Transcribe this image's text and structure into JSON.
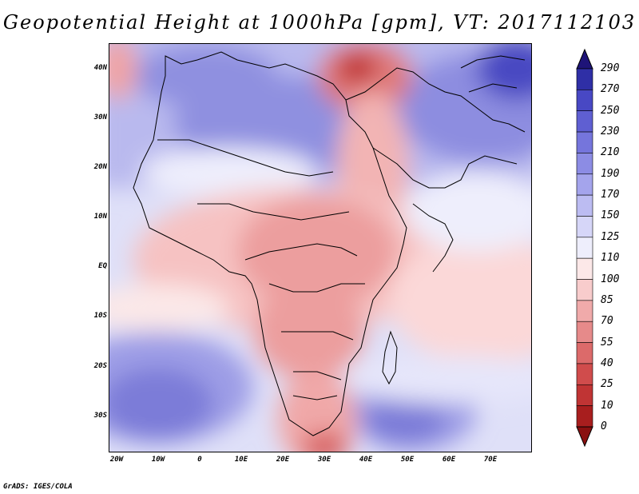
{
  "title": "Geopotential Height at 1000hPa [gpm], VT: 2017112103",
  "credit": "GrADS: IGES/COLA",
  "map": {
    "lon_range": [
      -20,
      80
    ],
    "lat_range": [
      -37,
      45
    ],
    "y_ticks": [
      {
        "label": "40N",
        "lat": 40
      },
      {
        "label": "30N",
        "lat": 30
      },
      {
        "label": "20N",
        "lat": 20
      },
      {
        "label": "10N",
        "lat": 10
      },
      {
        "label": "EQ",
        "lat": 0
      },
      {
        "label": "10S",
        "lat": -10
      },
      {
        "label": "20S",
        "lat": -20
      },
      {
        "label": "30S",
        "lat": -30
      }
    ],
    "x_ticks": [
      {
        "label": "20W",
        "lon": -20
      },
      {
        "label": "10W",
        "lon": -10
      },
      {
        "label": "0",
        "lon": 0
      },
      {
        "label": "10E",
        "lon": 10
      },
      {
        "label": "20E",
        "lon": 20
      },
      {
        "label": "30E",
        "lon": 30
      },
      {
        "label": "40E",
        "lon": 40
      },
      {
        "label": "50E",
        "lon": 50
      },
      {
        "label": "60E",
        "lon": 60
      },
      {
        "label": "70E",
        "lon": 70
      }
    ]
  },
  "colorbar": {
    "levels": [
      "290",
      "270",
      "250",
      "230",
      "210",
      "190",
      "170",
      "150",
      "125",
      "110",
      "100",
      "85",
      "70",
      "55",
      "40",
      "25",
      "10",
      "0"
    ],
    "colors": [
      "#1e1478",
      "#2f2fa6",
      "#4848c4",
      "#5f5fd2",
      "#7575dc",
      "#8c8ce4",
      "#a4a4ec",
      "#bcbcf2",
      "#d6d6f8",
      "#eeeefc",
      "#fce8e8",
      "#f8cccc",
      "#f0aaaa",
      "#e68a8a",
      "#dc6a6a",
      "#d04c4c",
      "#c03434",
      "#a81e1e",
      "#8a1010"
    ]
  }
}
